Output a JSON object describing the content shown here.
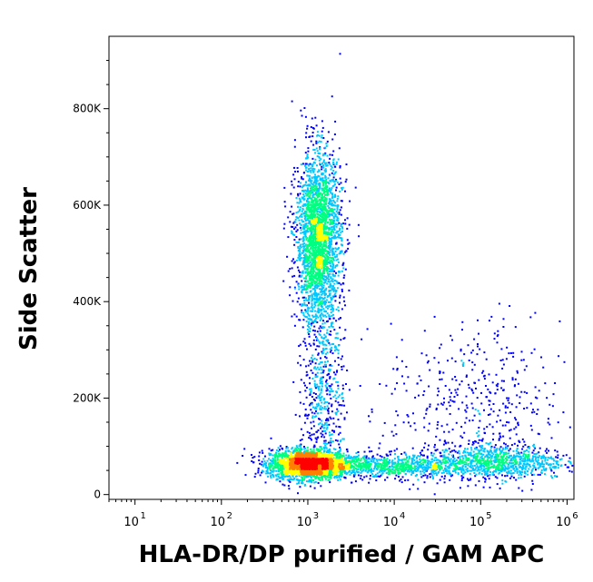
{
  "chart_data": {
    "type": "scatter",
    "title": "",
    "xlabel": "HLA-DR/DP purified / GAM APC",
    "ylabel": "Side Scatter",
    "x_scale": "log",
    "xlim": [
      5,
      1200000
    ],
    "ylim": [
      -10000,
      950000
    ],
    "x_ticks": [
      {
        "value": 10,
        "base": "10",
        "exp": "1"
      },
      {
        "value": 100,
        "base": "10",
        "exp": "2"
      },
      {
        "value": 1000,
        "base": "10",
        "exp": "3"
      },
      {
        "value": 10000,
        "base": "10",
        "exp": "4"
      },
      {
        "value": 100000,
        "base": "10",
        "exp": "5"
      },
      {
        "value": 1000000,
        "base": "10",
        "exp": "6"
      }
    ],
    "y_ticks": [
      {
        "value": 0,
        "label": "0"
      },
      {
        "value": 200000,
        "label": "200K"
      },
      {
        "value": 400000,
        "label": "400K"
      },
      {
        "value": 600000,
        "label": "600K"
      },
      {
        "value": 800000,
        "label": "800K"
      }
    ],
    "density_colormap": [
      "#0000ff",
      "#00c8ff",
      "#00ff80",
      "#ffff00",
      "#ff8000",
      "#ff0000"
    ],
    "populations": [
      {
        "name_hint": "dense low-SSC cluster",
        "x_center": 1000,
        "y_center": 65000,
        "x_spread_decades": 0.22,
        "y_spread": 15000,
        "density": "high"
      },
      {
        "name_hint": "low-SSC tail",
        "x_center": 8000,
        "y_center": 60000,
        "x_spread_decades": 0.5,
        "y_spread": 12000,
        "density": "medium"
      },
      {
        "name_hint": "high-SSC cluster",
        "x_center": 1300,
        "y_center": 530000,
        "x_spread_decades": 0.13,
        "y_spread": 90000,
        "density": "high"
      },
      {
        "name_hint": "bridge",
        "x_center": 1500,
        "y_center": 220000,
        "x_spread_decades": 0.12,
        "y_spread": 80000,
        "density": "low"
      },
      {
        "name_hint": "HLA-DR positive",
        "x_center": 80000,
        "y_center": 180000,
        "x_spread_decades": 0.5,
        "y_spread": 90000,
        "density": "low"
      },
      {
        "name_hint": "HLA-DR positive low",
        "x_center": 150000,
        "y_center": 70000,
        "x_spread_decades": 0.4,
        "y_spread": 18000,
        "density": "medium"
      }
    ],
    "grid": false,
    "legend": "none"
  }
}
